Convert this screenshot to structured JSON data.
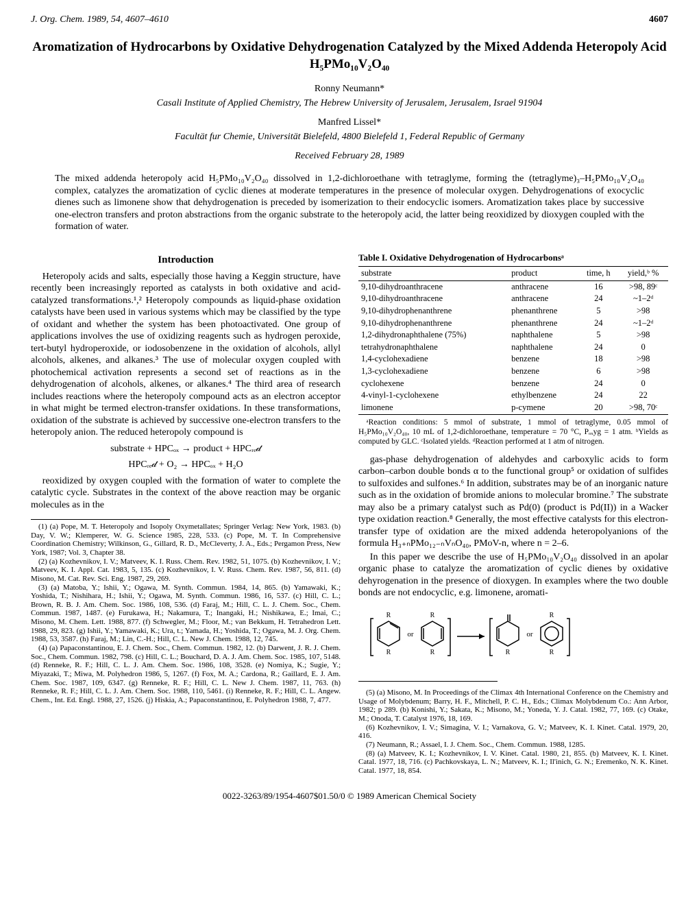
{
  "journal_header": {
    "citation": "J. Org. Chem. 1989, 54, 4607–4610",
    "page": "4607"
  },
  "title": "Aromatization of Hydrocarbons by Oxidative Dehydrogenation Catalyzed by the Mixed Addenda Heteropoly Acid H₅PMo₁₀V₂O₄₀",
  "author1": "Ronny Neumann*",
  "affil1": "Casali Institute of Applied Chemistry, The Hebrew University of Jerusalem, Jerusalem, Israel 91904",
  "author2": "Manfred Lissel*",
  "affil2": "Facultät fur Chemie, Universität Bielefeld, 4800 Bielefeld 1, Federal Republic of Germany",
  "received": "Received February 28, 1989",
  "abstract": "The mixed addenda heteropoly acid H₅PMo₁₀V₂O₄₀ dissolved in 1,2-dichloroethane with tetraglyme, forming the (tetraglyme)₃–H₅PMo₁₀V₂O₄₀ complex, catalyzes the aromatization of cyclic dienes at moderate temperatures in the presence of molecular oxygen. Dehydrogenations of exocyclic dienes such as limonene show that dehydrogenation is preceded by isomerization to their endocyclic isomers. Aromatization takes place by successive one-electron transfers and proton abstractions from the organic substrate to the heteropoly acid, the latter being reoxidized by dioxygen coupled with the formation of water.",
  "intro_head": "Introduction",
  "intro": {
    "p1": "Heteropoly acids and salts, especially those having a Keggin structure, have recently been increasingly reported as catalysts in both oxidative and acid-catalyzed transformations.¹,²  Heteropoly compounds as liquid-phase oxidation catalysts have been used in various systems which may be classified by the type of oxidant and whether the system has been photoactivated. One group of applications involves the use of oxidizing reagents such as hydrogen peroxide, tert-butyl hydroperoxide, or iodosobenzene in the oxidation of alcohols, allyl alcohols, alkenes, and alkanes.³ The use of molecular oxygen coupled with photochemical activation represents a second set of reactions as in the dehydrogenation of alcohols, alkenes, or alkanes.⁴ The third area of research includes reactions where the heteropoly compound acts as an electron acceptor in what might be termed electron-transfer oxidations. In these transformations, oxidation of the substrate is achieved by successive one-electron transfers to the heteropoly anion. The reduced heteropoly compound is",
    "eq1": "substrate + HPCₒₓ → product + HPCᵣₑ𝒹",
    "eq2": "HPCᵣₑ𝒹 + O₂ → HPCₒₓ + H₂O",
    "p2": "reoxidized by oxygen coupled with the formation of water to complete the catalytic cycle. Substrates in the context of the above reaction may be organic molecules as in the"
  },
  "footnotes_left": [
    "(1) (a) Pope, M. T. Heteropoly and Isopoly Oxymetallates; Springer Verlag: New York, 1983. (b) Day, V. W.; Klemperer, W. G. Science 1985, 228, 533. (c) Pope, M. T. In Comprehensive Coordination Chemistry; Wilkinson, G., Gillard, R. D., McCleverty, J. A., Eds.; Pergamon Press, New York, 1987; Vol. 3, Chapter 38.",
    "(2) (a) Kozhevnikov, I. V.; Matveev, K. I. Russ. Chem. Rev. 1982, 51, 1075. (b) Kozhevnikov, I. V.; Matveev, K. I. Appl. Cat. 1983, 5, 135. (c) Kozhevnikov, I. V. Russ. Chem. Rev. 1987, 56, 811. (d) Misono, M. Cat. Rev. Sci. Eng. 1987, 29, 269.",
    "(3) (a) Matoba, Y.; Ishii, Y.; Ogawa, M. Synth. Commun. 1984, 14, 865. (b) Yamawaki, K.; Yoshida, T.; Nishihara, H.; Ishii, Y.; Ogawa, M. Synth. Commun. 1986, 16, 537. (c) Hill, C. L.; Brown, R. B. J. Am. Chem. Soc. 1986, 108, 536. (d) Faraj, M.; Hill, C. L. J. Chem. Soc., Chem. Commun. 1987, 1487. (e) Furukawa, H.; Nakamura, T.; Inangaki, H.; Nishikawa, E.; Imai, C.; Misono, M. Chem. Lett. 1988, 877. (f) Schwegler, M.; Floor, M.; van Bekkum, H. Tetrahedron Lett. 1988, 29, 823. (g) Ishii, Y.; Yamawaki, K.; Ura, t.; Yamada, H.; Yoshida, T.; Ogawa, M. J. Org. Chem. 1988, 53, 3587. (h) Faraj, M.; Lin, C.-H.; Hill, C. L. New J. Chem. 1988, 12, 745.",
    "(4) (a) Papaconstantinou, E. J. Chem. Soc., Chem. Commun. 1982, 12. (b) Darwent, J. R. J. Chem. Soc., Chem. Commun. 1982, 798. (c) Hill, C. L.; Bouchard, D. A. J. Am. Chem. Soc. 1985, 107, 5148. (d) Renneke, R. F.; Hill, C. L. J. Am. Chem. Soc. 1986, 108, 3528. (e) Nomiya, K.; Sugie, Y.; Miyazaki, T.; Miwa, M. Polyhedron 1986, 5, 1267. (f) Fox, M. A.; Cardona, R.; Gaillard, E. J. Am. Chem. Soc. 1987, 109, 6347. (g) Renneke, R. F.; Hill, C. L. New J. Chem. 1987, 11, 763. (h) Renneke, R. F.; Hill, C. L. J. Am. Chem. Soc. 1988, 110, 5461. (i) Renneke, R. F.; Hill, C. L. Angew. Chem., Int. Ed. Engl. 1988, 27, 1526. (j) Hiskia, A.; Papaconstantinou, E. Polyhedron 1988, 7, 477."
  ],
  "table1": {
    "title": "Table I.  Oxidative Dehydrogenation of Hydrocarbonsᵃ",
    "headers": [
      "substrate",
      "product",
      "time, h",
      "yield,ᵇ %"
    ],
    "rows": [
      [
        "9,10-dihydroanthracene",
        "anthracene",
        "16",
        ">98, 89ᶜ"
      ],
      [
        "9,10-dihydroanthracene",
        "anthracene",
        "24",
        "~1–2ᵈ"
      ],
      [
        "9,10-dihydrophenanthrene",
        "phenanthrene",
        "5",
        ">98"
      ],
      [
        "9,10-dihydrophenanthrene",
        "phenanthrene",
        "24",
        "~1–2ᵈ"
      ],
      [
        "1,2-dihydronaphthalene (75%)",
        "naphthalene",
        "5",
        ">98"
      ],
      [
        "tetrahydronaphthalene",
        "naphthalene",
        "24",
        "0"
      ],
      [
        "1,4-cyclohexadiene",
        "benzene",
        "18",
        ">98"
      ],
      [
        "1,3-cyclohexadiene",
        "benzene",
        "6",
        ">98"
      ],
      [
        "cyclohexene",
        "benzene",
        "24",
        "0"
      ],
      [
        "4-vinyl-1-cyclohexene",
        "ethylbenzene",
        "24",
        "22"
      ],
      [
        "limonene",
        "p-cymene",
        "20",
        ">98, 70ᶜ"
      ]
    ],
    "note": "ᵃReaction conditions: 5 mmol of substrate, 1 mmol of tetraglyme, 0.05 mmol of H₅PMo₁₀V₂O₄₀, 10 mL of 1,2-dichloroethane, temperature = 70 °C, Pₒₓyg = 1 atm. ᵇYields as computed by GLC. ᶜIsolated yields. ᵈReaction performed at 1 atm of nitrogen."
  },
  "right_body": {
    "p1": "gas-phase dehydrogenation of aldehydes and carboxylic acids to form carbon–carbon double bonds α to the functional group⁵ or oxidation of sulfides to sulfoxides and sulfones.⁶ In addition, substrates may be of an inorganic nature such as in the oxidation of bromide anions to molecular bromine.⁷ The substrate may also be a primary catalyst such as Pd(0) (product is Pd(II)) in a Wacker type oxidation reaction.⁸ Generally, the most effective catalysts for this electron-transfer type of oxidation are the mixed addenda heteropolyanions of the formula H₃₊ₙPMo₁₂₋ₙVₙO₄₀, PMoV-n, where n = 2–6.",
    "p2": "In this paper we describe the use of H₅PMo₁₀V₂O₄₀ dissolved in an apolar organic phase to catalyze the aromatization of cyclic dienes by oxidative dehyrogenation in the presence of dioxygen. In examples where the two double bonds are not endocyclic, e.g. limonene, aromati-"
  },
  "scheme": {
    "svg_stroke": "#000000",
    "svg_fill": "none"
  },
  "footnotes_right": [
    "(5) (a) Misono, M. In Proceedings of the Climax 4th International Conference on the Chemistry and Usage of Molybdenum; Barry, H. F., Mitchell, P. C. H., Eds.; Climax Molybdenum Co.: Ann Arbor, 1982; p 289. (b) Konishi, Y.; Sakata, K.; Misono, M.; Yoneda, Y. J. Catal. 1982, 77, 169. (c) Otake, M.; Onoda, T. Catalyst 1976, 18, 169.",
    "(6) Kozhevnikov, I. V.; Simagina, V. I.; Varnakova, G. V.; Matveev, K. I. Kinet. Catal. 1979, 20, 416.",
    "(7) Neumann, R.; Assael, I. J. Chem. Soc., Chem. Commun. 1988, 1285.",
    "(8) (a) Matveev, K. I.; Kozhevnikov, I. V. Kinet. Catal. 1980, 21, 855. (b) Matveev, K. I. Kinet. Catal. 1977, 18, 716. (c) Pachkovskaya, L. N.; Matveev, K. I.; Il'inich, G. N.; Eremenko, N. K. Kinet. Catal. 1977, 18, 854."
  ],
  "footer": "0022-3263/89/1954-4607$01.50/0   © 1989 American Chemical Society"
}
